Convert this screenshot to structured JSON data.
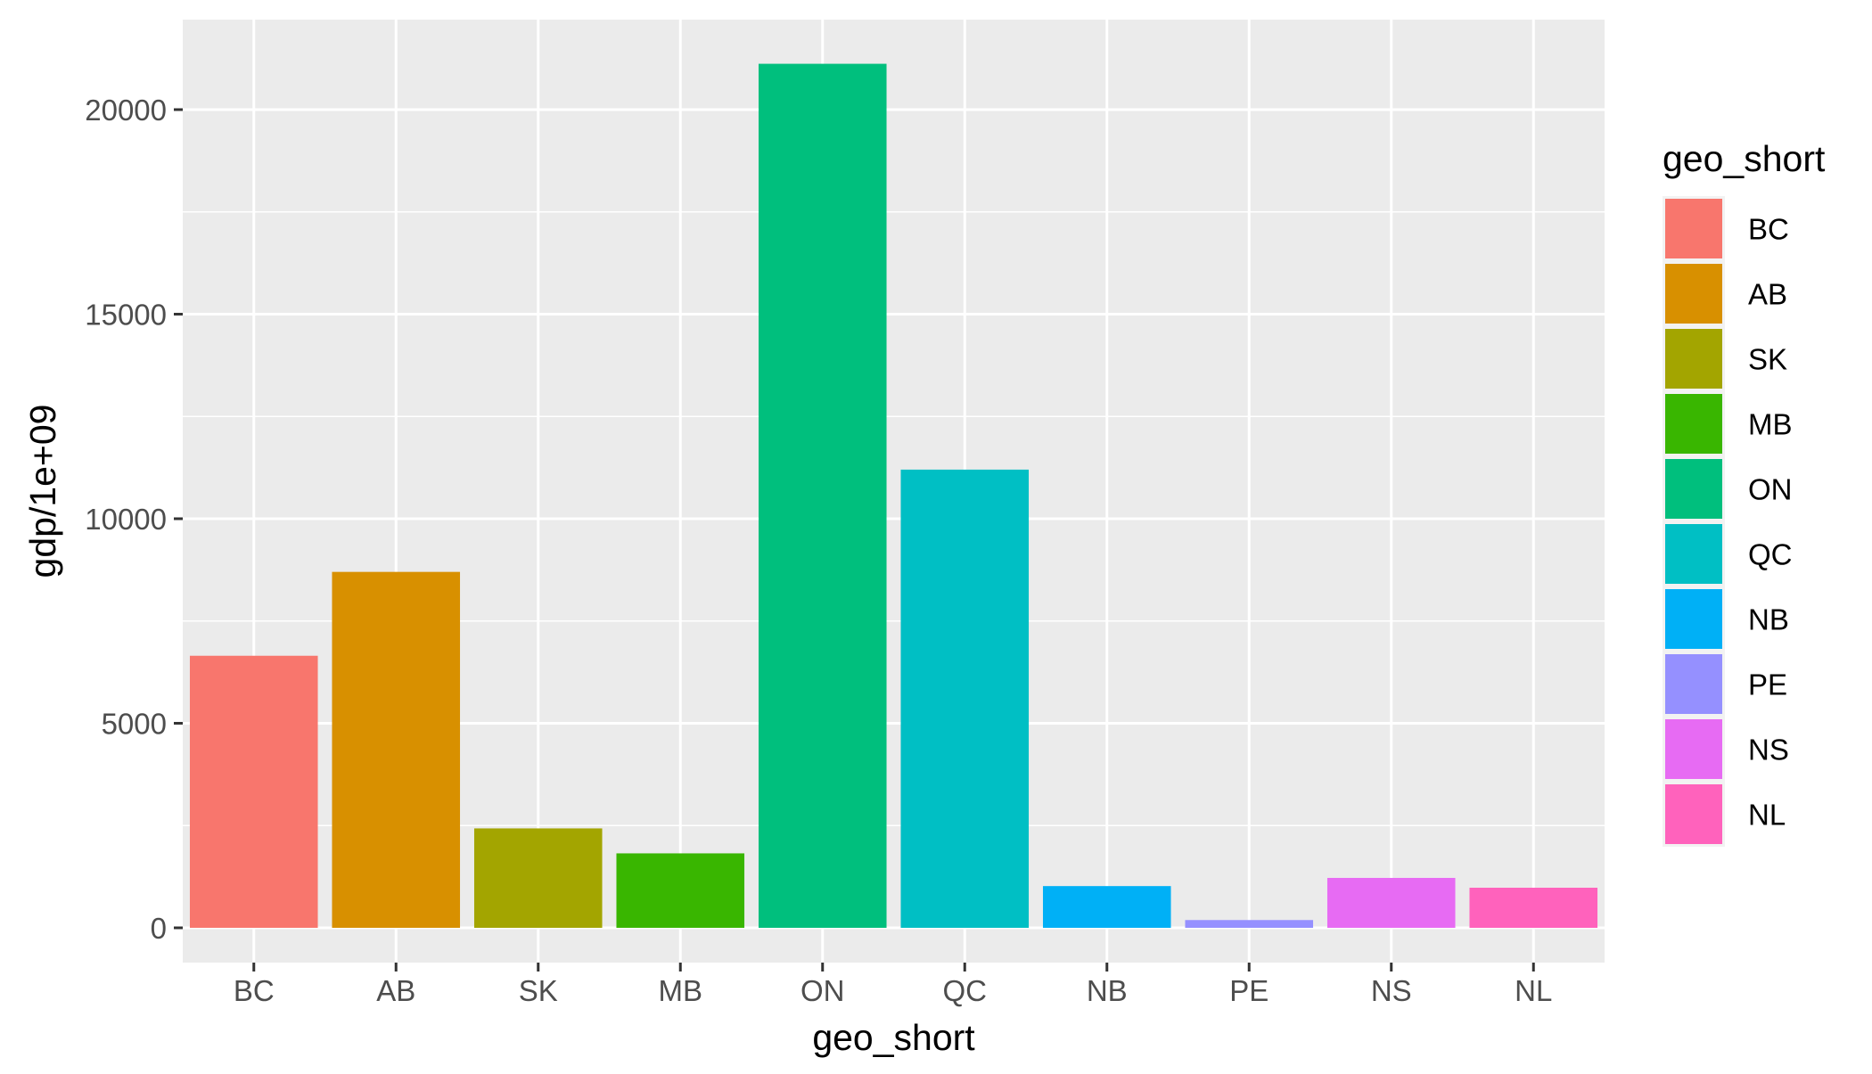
{
  "chart_data": {
    "type": "bar",
    "categories": [
      "BC",
      "AB",
      "SK",
      "MB",
      "ON",
      "QC",
      "NB",
      "PE",
      "NS",
      "NL"
    ],
    "values": [
      6650,
      8700,
      2430,
      1820,
      21120,
      11200,
      1020,
      190,
      1220,
      980
    ],
    "colors": [
      "#F8766D",
      "#D89000",
      "#A3A500",
      "#39B600",
      "#00BF7D",
      "#00BFC4",
      "#00B0F6",
      "#9590FF",
      "#E76BF3",
      "#FF62BC"
    ],
    "xlabel": "geo_short",
    "ylabel": "gdp/1e+09",
    "ylim": [
      -850,
      22200
    ],
    "yticks": [
      0,
      5000,
      10000,
      15000,
      20000
    ],
    "ytick_labels": [
      "0",
      "5000",
      "10000",
      "15000",
      "20000"
    ],
    "grid": true,
    "legend": {
      "title": "geo_short",
      "position": "right",
      "entries": [
        "BC",
        "AB",
        "SK",
        "MB",
        "ON",
        "QC",
        "NB",
        "PE",
        "NS",
        "NL"
      ]
    }
  }
}
